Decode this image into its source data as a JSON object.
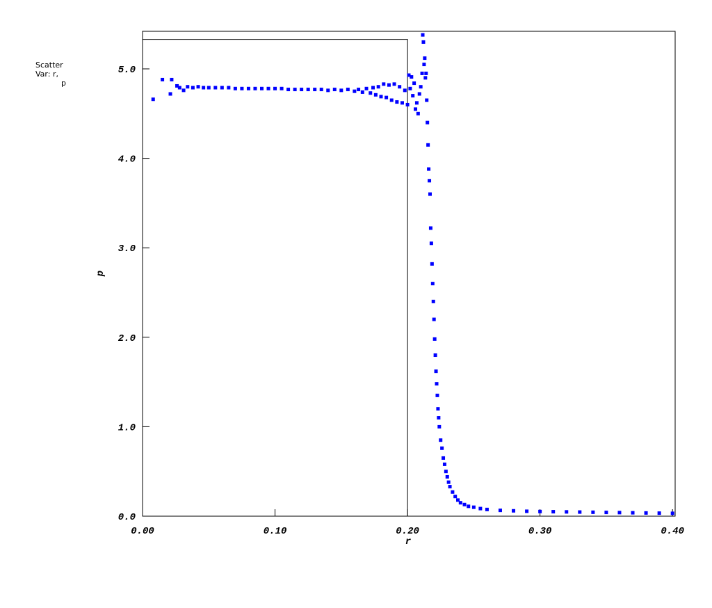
{
  "chart_data": {
    "type": "scatter",
    "legend_lines": [
      "Scatter",
      "Var: r,",
      "p"
    ],
    "xlabel": "r",
    "ylabel": "p",
    "xlim": [
      0,
      0.402
    ],
    "ylim": [
      0,
      5.42
    ],
    "xticks": [
      {
        "value": 0,
        "label": "0.00"
      },
      {
        "value": 0.1,
        "label": "0.10"
      },
      {
        "value": 0.2,
        "label": "0.20"
      },
      {
        "value": 0.3,
        "label": "0.30"
      },
      {
        "value": 0.4,
        "label": "0.40"
      }
    ],
    "yticks": [
      {
        "value": 0,
        "label": "0.0"
      },
      {
        "value": 1,
        "label": "1.0"
      },
      {
        "value": 2,
        "label": "2.0"
      },
      {
        "value": 3,
        "label": "3.0"
      },
      {
        "value": 4,
        "label": "4.0"
      },
      {
        "value": 5,
        "label": "5.0"
      }
    ],
    "series": [
      {
        "type": "line",
        "color": "#000000",
        "x": [
          0,
          0.2,
          0.2
        ],
        "values": [
          5.33,
          5.33,
          0
        ]
      },
      {
        "type": "scatter",
        "color": "#0000ff",
        "x": [
          0.008,
          0.015,
          0.021,
          0.022,
          0.026,
          0.028,
          0.031,
          0.034,
          0.038,
          0.042,
          0.046,
          0.05,
          0.055,
          0.06,
          0.065,
          0.07,
          0.075,
          0.08,
          0.085,
          0.09,
          0.095,
          0.1,
          0.105,
          0.11,
          0.115,
          0.12,
          0.125,
          0.13,
          0.135,
          0.14,
          0.145,
          0.15,
          0.155,
          0.16,
          0.163,
          0.166,
          0.169,
          0.172,
          0.174,
          0.176,
          0.178,
          0.18,
          0.182,
          0.184,
          0.186,
          0.188,
          0.19,
          0.192,
          0.194,
          0.196,
          0.198,
          0.2,
          0.201,
          0.202,
          0.203,
          0.204,
          0.205,
          0.206,
          0.207,
          0.208,
          0.209,
          0.21,
          0.211,
          0.2115,
          0.212,
          0.2125,
          0.213,
          0.2135,
          0.214,
          0.2145,
          0.215,
          0.2155,
          0.216,
          0.2165,
          0.217,
          0.2175,
          0.218,
          0.2185,
          0.219,
          0.2195,
          0.22,
          0.2205,
          0.221,
          0.2215,
          0.222,
          0.2225,
          0.223,
          0.2235,
          0.224,
          0.225,
          0.226,
          0.227,
          0.228,
          0.229,
          0.23,
          0.231,
          0.232,
          0.234,
          0.236,
          0.238,
          0.24,
          0.243,
          0.246,
          0.25,
          0.255,
          0.26,
          0.27,
          0.28,
          0.29,
          0.3,
          0.31,
          0.32,
          0.33,
          0.34,
          0.35,
          0.36,
          0.37,
          0.38,
          0.39,
          0.4
        ],
        "values": [
          4.66,
          4.88,
          4.72,
          4.88,
          4.81,
          4.79,
          4.76,
          4.8,
          4.79,
          4.8,
          4.79,
          4.79,
          4.79,
          4.79,
          4.79,
          4.78,
          4.78,
          4.78,
          4.78,
          4.78,
          4.78,
          4.78,
          4.78,
          4.77,
          4.77,
          4.77,
          4.77,
          4.77,
          4.77,
          4.76,
          4.77,
          4.76,
          4.77,
          4.75,
          4.77,
          4.74,
          4.78,
          4.73,
          4.79,
          4.71,
          4.8,
          4.69,
          4.83,
          4.68,
          4.82,
          4.65,
          4.83,
          4.63,
          4.8,
          4.62,
          4.76,
          4.6,
          4.93,
          4.78,
          4.91,
          4.7,
          4.84,
          4.55,
          4.62,
          4.5,
          4.72,
          4.8,
          4.95,
          5.38,
          5.3,
          5.05,
          5.12,
          4.9,
          4.95,
          4.65,
          4.4,
          4.15,
          3.88,
          3.75,
          3.6,
          3.22,
          3.05,
          2.82,
          2.6,
          2.4,
          2.2,
          1.98,
          1.8,
          1.62,
          1.48,
          1.35,
          1.2,
          1.1,
          1.0,
          0.85,
          0.76,
          0.65,
          0.58,
          0.5,
          0.44,
          0.38,
          0.33,
          0.27,
          0.22,
          0.18,
          0.15,
          0.13,
          0.11,
          0.1,
          0.085,
          0.075,
          0.065,
          0.06,
          0.055,
          0.052,
          0.05,
          0.048,
          0.046,
          0.044,
          0.042,
          0.04,
          0.038,
          0.036,
          0.034,
          0.032
        ]
      }
    ]
  }
}
